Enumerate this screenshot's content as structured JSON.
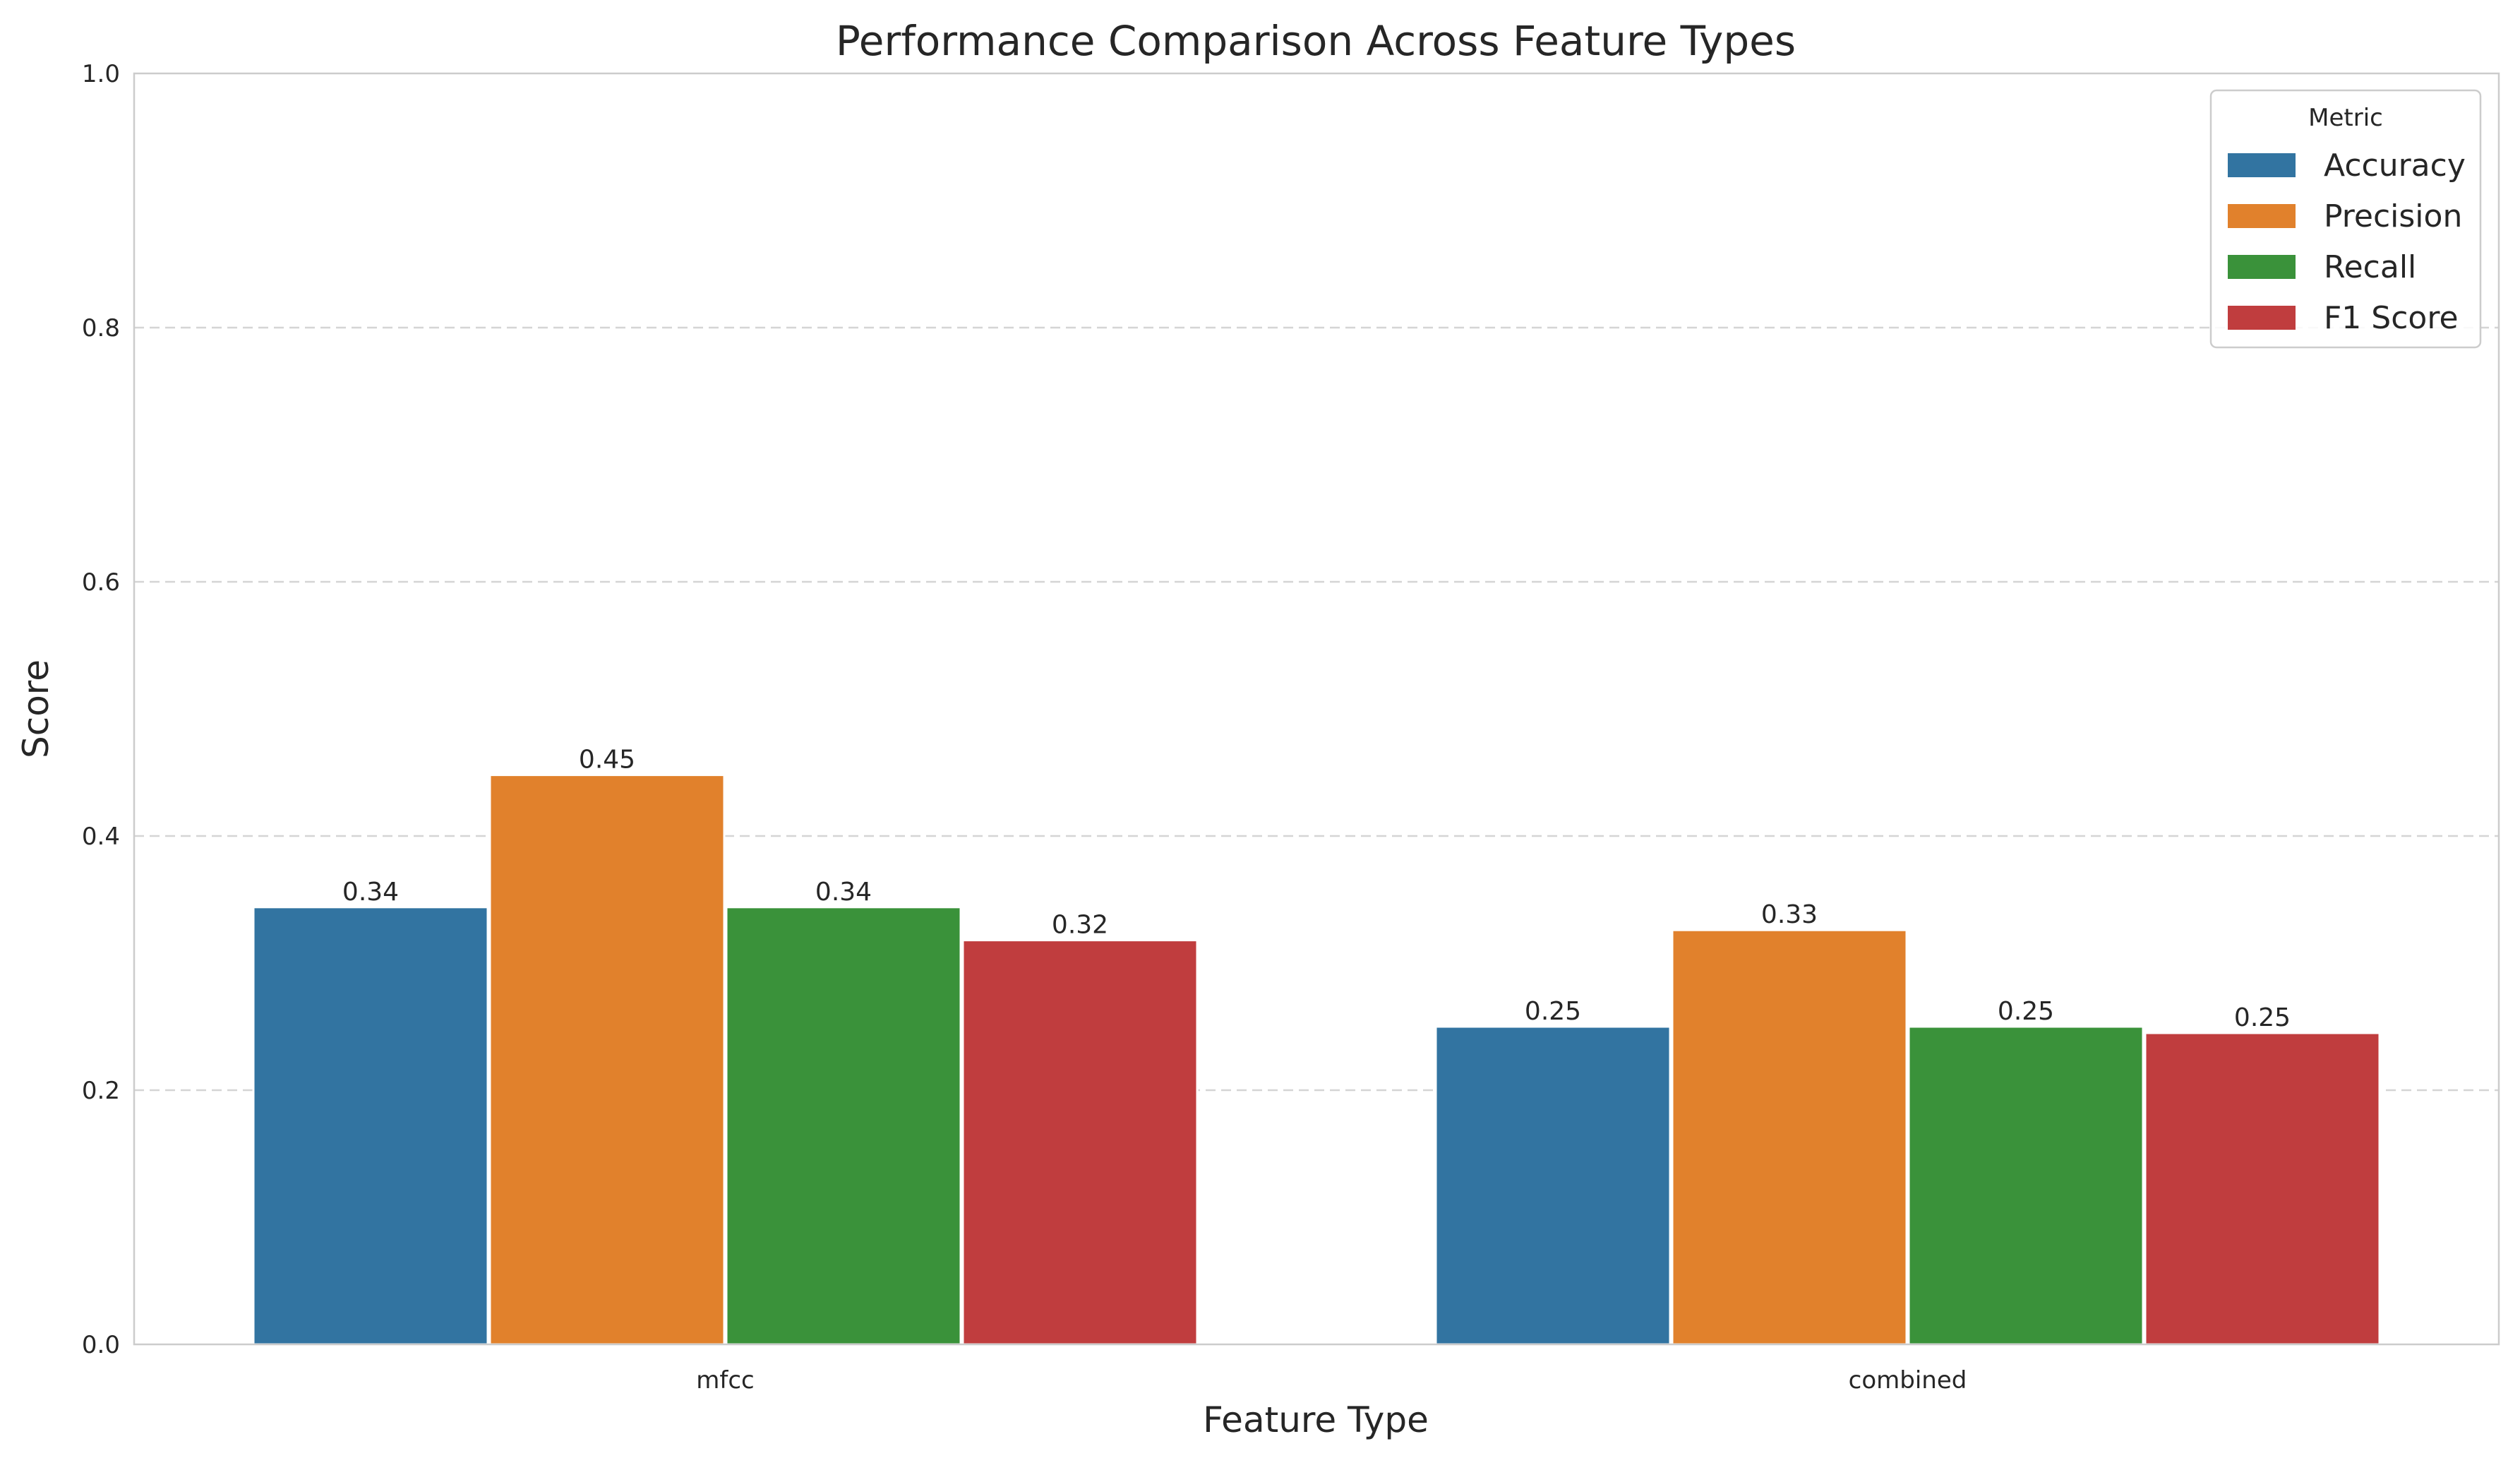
{
  "chart_data": {
    "type": "bar",
    "title": "Performance Comparison Across Feature Types",
    "xlabel": "Feature Type",
    "ylabel": "Score",
    "categories": [
      "mfcc",
      "combined"
    ],
    "ylim": [
      0,
      1.0
    ],
    "yticks": [
      "0.0",
      "0.2",
      "0.4",
      "0.6",
      "0.8",
      "1.0"
    ],
    "grid": "horizontal dashed",
    "legend": {
      "title": "Metric",
      "placement": "top-right"
    },
    "series": [
      {
        "name": "Accuracy",
        "color": "#3274a1",
        "values": [
          0.344,
          0.25
        ],
        "labels": [
          "0.34",
          "0.25"
        ]
      },
      {
        "name": "Precision",
        "color": "#e1812c",
        "values": [
          0.448,
          0.326
        ],
        "labels": [
          "0.45",
          "0.33"
        ]
      },
      {
        "name": "Recall",
        "color": "#3a923a",
        "values": [
          0.344,
          0.25
        ],
        "labels": [
          "0.34",
          "0.25"
        ]
      },
      {
        "name": "F1 Score",
        "color": "#c03d3e",
        "values": [
          0.318,
          0.245
        ],
        "labels": [
          "0.32",
          "0.25"
        ]
      }
    ]
  }
}
